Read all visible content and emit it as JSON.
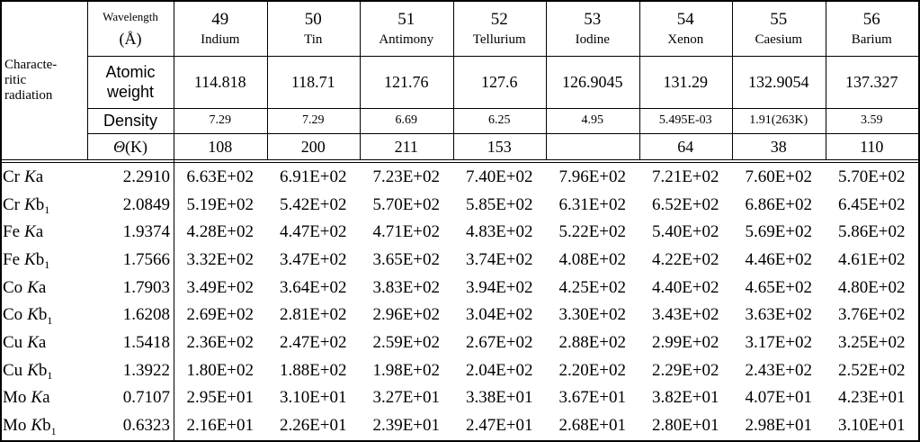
{
  "header": {
    "wavelength": "Wavelength",
    "unit": "(Å)",
    "radiation": [
      "Characte-",
      "ritic",
      "radiation"
    ],
    "atomic_weight": [
      "Atomic",
      "weight"
    ],
    "density": "Density",
    "theta_symbol": "Θ",
    "theta_unit": "(K)"
  },
  "elements": [
    {
      "number": "49",
      "name": "Indium",
      "weight": "114.818",
      "density": "7.29",
      "theta": "108"
    },
    {
      "number": "50",
      "name": "Tin",
      "weight": "118.71",
      "density": "7.29",
      "theta": "200"
    },
    {
      "number": "51",
      "name": "Antimony",
      "weight": "121.76",
      "density": "6.69",
      "theta": "211"
    },
    {
      "number": "52",
      "name": "Tellurium",
      "weight": "127.6",
      "density": "6.25",
      "theta": "153"
    },
    {
      "number": "53",
      "name": "Iodine",
      "weight": "126.9045",
      "density": "4.95"
    },
    {
      "number": "54",
      "name": "Xenon",
      "weight": "131.29",
      "density": "5.495E-03",
      "theta": "64"
    },
    {
      "number": "55",
      "name": "Caesium",
      "weight": "132.9054",
      "density": "1.91(263K)",
      "theta": "38"
    },
    {
      "number": "56",
      "name": "Barium",
      "weight": "137.327",
      "density": "3.59",
      "theta": "110"
    }
  ],
  "rows": [
    {
      "element": "Cr",
      "shell": "K",
      "line": "a",
      "wavelength": "2.2910",
      "values": [
        "6.63E+02",
        "6.91E+02",
        "7.23E+02",
        "7.40E+02",
        "7.96E+02",
        "7.21E+02",
        "7.60E+02",
        "5.70E+02"
      ]
    },
    {
      "element": "Cr",
      "shell": "K",
      "line": "b",
      "sub": "1",
      "wavelength": "2.0849",
      "values": [
        "5.19E+02",
        "5.42E+02",
        "5.70E+02",
        "5.85E+02",
        "6.31E+02",
        "6.52E+02",
        "6.86E+02",
        "6.45E+02"
      ]
    },
    {
      "element": "Fe",
      "shell": "K",
      "line": "a",
      "wavelength": "1.9374",
      "values": [
        "4.28E+02",
        "4.47E+02",
        "4.71E+02",
        "4.83E+02",
        "5.22E+02",
        "5.40E+02",
        "5.69E+02",
        "5.86E+02"
      ]
    },
    {
      "element": "Fe",
      "shell": "K",
      "line": "b",
      "sub": "1",
      "wavelength": "1.7566",
      "values": [
        "3.32E+02",
        "3.47E+02",
        "3.65E+02",
        "3.74E+02",
        "4.08E+02",
        "4.22E+02",
        "4.46E+02",
        "4.61E+02"
      ]
    },
    {
      "element": "Co",
      "shell": "K",
      "line": "a",
      "wavelength": "1.7903",
      "values": [
        "3.49E+02",
        "3.64E+02",
        "3.83E+02",
        "3.94E+02",
        "4.25E+02",
        "4.40E+02",
        "4.65E+02",
        "4.80E+02"
      ]
    },
    {
      "element": "Co",
      "shell": "K",
      "line": "b",
      "sub": "1",
      "wavelength": "1.6208",
      "values": [
        "2.69E+02",
        "2.81E+02",
        "2.96E+02",
        "3.04E+02",
        "3.30E+02",
        "3.43E+02",
        "3.63E+02",
        "3.76E+02"
      ]
    },
    {
      "element": "Cu",
      "shell": "K",
      "line": "a",
      "wavelength": "1.5418",
      "values": [
        "2.36E+02",
        "2.47E+02",
        "2.59E+02",
        "2.67E+02",
        "2.88E+02",
        "2.99E+02",
        "3.17E+02",
        "3.25E+02"
      ]
    },
    {
      "element": "Cu",
      "shell": "K",
      "line": "b",
      "sub": "1",
      "wavelength": "1.3922",
      "values": [
        "1.80E+02",
        "1.88E+02",
        "1.98E+02",
        "2.04E+02",
        "2.20E+02",
        "2.29E+02",
        "2.43E+02",
        "2.52E+02"
      ]
    },
    {
      "element": "Mo",
      "shell": "K",
      "line": "a",
      "wavelength": "0.7107",
      "values": [
        "2.95E+01",
        "3.10E+01",
        "3.27E+01",
        "3.38E+01",
        "3.67E+01",
        "3.82E+01",
        "4.07E+01",
        "4.23E+01"
      ]
    },
    {
      "element": "Mo",
      "shell": "K",
      "line": "b",
      "sub": "1",
      "wavelength": "0.6323",
      "values": [
        "2.16E+01",
        "2.26E+01",
        "2.39E+01",
        "2.47E+01",
        "2.68E+01",
        "2.80E+01",
        "2.98E+01",
        "3.10E+01"
      ]
    }
  ]
}
